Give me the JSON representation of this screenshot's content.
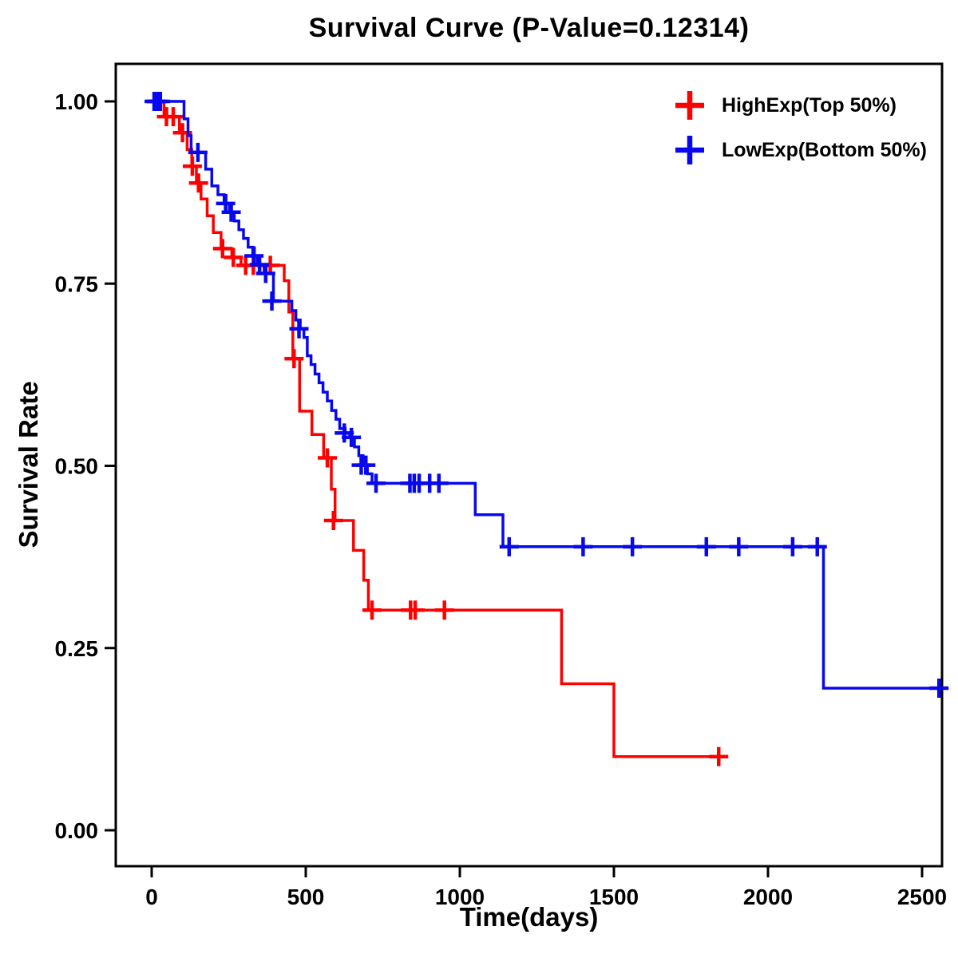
{
  "chart_data": {
    "type": "line",
    "subtype": "kaplan-meier-step",
    "title": "Survival Curve (P-Value=0.12314)",
    "xlabel": "Time(days)",
    "ylabel": "Survival Rate",
    "xticks": [
      0,
      500,
      1000,
      1500,
      2000,
      2500
    ],
    "xtick_labels": [
      "0",
      "500",
      "1000",
      "1500",
      "2000",
      "2500"
    ],
    "yticks": [
      0.0,
      0.25,
      0.5,
      0.75,
      1.0
    ],
    "ytick_labels": [
      "0.00",
      "0.25",
      "0.50",
      "0.75",
      "1.00"
    ],
    "xlim": [
      -117,
      2565
    ],
    "ylim": [
      -0.05,
      1.05
    ],
    "grid": false,
    "legend_position": "top-right",
    "background_color": "#ffffff",
    "axis_color": "#000000",
    "series": [
      {
        "name": "HighExp(Top 50%)",
        "color": "#ff0000",
        "points": [
          [
            0,
            1.0
          ],
          [
            40,
            0.979
          ],
          [
            90,
            0.957
          ],
          [
            115,
            0.934
          ],
          [
            130,
            0.911
          ],
          [
            145,
            0.888
          ],
          [
            160,
            0.866
          ],
          [
            180,
            0.843
          ],
          [
            200,
            0.82
          ],
          [
            225,
            0.798
          ],
          [
            260,
            0.786
          ],
          [
            290,
            0.775
          ],
          [
            430,
            0.754
          ],
          [
            445,
            0.711
          ],
          [
            458,
            0.647
          ],
          [
            480,
            0.575
          ],
          [
            520,
            0.543
          ],
          [
            558,
            0.511
          ],
          [
            583,
            0.468
          ],
          [
            595,
            0.425
          ],
          [
            655,
            0.384
          ],
          [
            688,
            0.343
          ],
          [
            703,
            0.302
          ],
          [
            1330,
            0.201
          ],
          [
            1500,
            0.101
          ],
          [
            1840,
            0.101
          ]
        ],
        "censors": [
          [
            15,
            1.0
          ],
          [
            48,
            0.979
          ],
          [
            70,
            0.979
          ],
          [
            100,
            0.957
          ],
          [
            132,
            0.911
          ],
          [
            152,
            0.888
          ],
          [
            230,
            0.798
          ],
          [
            265,
            0.786
          ],
          [
            305,
            0.775
          ],
          [
            330,
            0.775
          ],
          [
            385,
            0.775
          ],
          [
            462,
            0.647
          ],
          [
            570,
            0.511
          ],
          [
            590,
            0.425
          ],
          [
            715,
            0.302
          ],
          [
            840,
            0.302
          ],
          [
            855,
            0.302
          ],
          [
            950,
            0.302
          ],
          [
            1840,
            0.101
          ]
        ]
      },
      {
        "name": "LowExp(Bottom 50%)",
        "color": "#0808ee",
        "points": [
          [
            0,
            1.0
          ],
          [
            105,
            0.976
          ],
          [
            118,
            0.953
          ],
          [
            128,
            0.93
          ],
          [
            175,
            0.907
          ],
          [
            195,
            0.884
          ],
          [
            215,
            0.872
          ],
          [
            235,
            0.86
          ],
          [
            252,
            0.848
          ],
          [
            268,
            0.836
          ],
          [
            283,
            0.824
          ],
          [
            298,
            0.812
          ],
          [
            313,
            0.8
          ],
          [
            328,
            0.788
          ],
          [
            343,
            0.776
          ],
          [
            365,
            0.764
          ],
          [
            395,
            0.726
          ],
          [
            455,
            0.713
          ],
          [
            468,
            0.7
          ],
          [
            482,
            0.688
          ],
          [
            494,
            0.676
          ],
          [
            505,
            0.651
          ],
          [
            517,
            0.639
          ],
          [
            530,
            0.626
          ],
          [
            543,
            0.614
          ],
          [
            556,
            0.601
          ],
          [
            570,
            0.589
          ],
          [
            584,
            0.576
          ],
          [
            598,
            0.564
          ],
          [
            610,
            0.551
          ],
          [
            628,
            0.545
          ],
          [
            643,
            0.539
          ],
          [
            658,
            0.526
          ],
          [
            672,
            0.514
          ],
          [
            686,
            0.501
          ],
          [
            700,
            0.489
          ],
          [
            715,
            0.476
          ],
          [
            1050,
            0.433
          ],
          [
            1140,
            0.389
          ],
          [
            2180,
            0.195
          ],
          [
            2560,
            0.195
          ]
        ],
        "censors": [
          [
            8,
            1.0
          ],
          [
            18,
            1.0
          ],
          [
            28,
            1.0
          ],
          [
            150,
            0.93
          ],
          [
            240,
            0.86
          ],
          [
            258,
            0.848
          ],
          [
            332,
            0.788
          ],
          [
            350,
            0.776
          ],
          [
            370,
            0.764
          ],
          [
            390,
            0.726
          ],
          [
            478,
            0.688
          ],
          [
            625,
            0.545
          ],
          [
            648,
            0.539
          ],
          [
            680,
            0.501
          ],
          [
            695,
            0.501
          ],
          [
            728,
            0.476
          ],
          [
            838,
            0.476
          ],
          [
            852,
            0.476
          ],
          [
            868,
            0.476
          ],
          [
            902,
            0.476
          ],
          [
            932,
            0.476
          ],
          [
            1160,
            0.389
          ],
          [
            1400,
            0.389
          ],
          [
            1560,
            0.389
          ],
          [
            1800,
            0.389
          ],
          [
            1905,
            0.389
          ],
          [
            2080,
            0.389
          ],
          [
            2160,
            0.389
          ],
          [
            2555,
            0.195
          ]
        ]
      }
    ]
  }
}
